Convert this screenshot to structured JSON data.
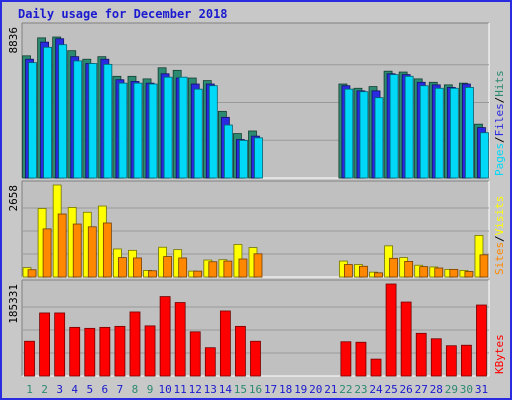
{
  "chart_data": {
    "type": "bar",
    "title": "Daily usage for December 2018",
    "days": [
      "1",
      "2",
      "3",
      "4",
      "5",
      "6",
      "7",
      "8",
      "9",
      "10",
      "11",
      "12",
      "13",
      "14",
      "15",
      "16",
      "17",
      "18",
      "19",
      "20",
      "21",
      "22",
      "23",
      "24",
      "25",
      "26",
      "27",
      "28",
      "29",
      "30",
      "31"
    ],
    "weekend_days": [
      "1",
      "2",
      "8",
      "9",
      "15",
      "16",
      "22",
      "23",
      "29",
      "30"
    ],
    "panels": [
      {
        "id": "top",
        "max_label": "8836",
        "ymax": 8836,
        "right_labels": [
          "Hits",
          "Files",
          "Pages"
        ],
        "series": [
          {
            "name": "Hits",
            "color": "#2c8a70",
            "values": [
              7150,
              8200,
              8250,
              7450,
              6950,
              7100,
              5950,
              5950,
              5800,
              6450,
              6300,
              5850,
              5700,
              3900,
              2600,
              2750,
              0,
              0,
              0,
              0,
              0,
              5500,
              5250,
              5350,
              6250,
              6200,
              5800,
              5600,
              5450,
              5550,
              3150
            ]
          },
          {
            "name": "Files",
            "color": "#2a2ae0",
            "values": [
              6950,
              7950,
              8150,
              7100,
              6700,
              6950,
              5750,
              5650,
              5550,
              6100,
              5850,
              5500,
              5500,
              3550,
              2250,
              2450,
              0,
              0,
              0,
              0,
              0,
              5400,
              5100,
              5100,
              6100,
              6050,
              5600,
              5450,
              5300,
              5500,
              2950
            ]
          },
          {
            "name": "Pages",
            "color": "#00d8f8",
            "values": [
              6750,
              7650,
              7800,
              6850,
              6700,
              6650,
              5550,
              5550,
              5500,
              5900,
              5900,
              5200,
              5400,
              3100,
              2200,
              2350,
              0,
              0,
              0,
              0,
              0,
              5200,
              5050,
              4700,
              6050,
              5950,
              5400,
              5250,
              5250,
              5300,
              2650
            ]
          }
        ]
      },
      {
        "id": "mid",
        "max_label": "2658",
        "ymax": 2658,
        "right_labels": [
          "Visits",
          "Sites"
        ],
        "series": [
          {
            "name": "Visits",
            "color": "#ffff00",
            "values": [
              270,
              1980,
              2658,
              2010,
              1870,
              2050,
              810,
              770,
              190,
              860,
              790,
              170,
              490,
              500,
              940,
              850,
              0,
              0,
              0,
              0,
              0,
              460,
              360,
              140,
              900,
              560,
              340,
              290,
              220,
              190,
              1200
            ]
          },
          {
            "name": "Sites",
            "color": "#ff8800",
            "values": [
              210,
              1390,
              1820,
              1530,
              1450,
              1560,
              560,
              550,
              180,
              590,
              550,
              170,
              440,
              460,
              520,
              670,
              0,
              0,
              0,
              0,
              0,
              360,
              310,
              120,
              540,
              450,
              300,
              260,
              220,
              160,
              640
            ]
          }
        ]
      },
      {
        "id": "bot",
        "max_label": "185331",
        "ymax": 185331,
        "right_labels": [
          "KBytes"
        ],
        "series": [
          {
            "name": "KBytes",
            "color": "#ff0000",
            "values": [
              70000,
              127000,
              127000,
              98000,
              96000,
              98000,
              100000,
              129000,
              101000,
              160000,
              148000,
              89000,
              57000,
              131000,
              100000,
              70000,
              0,
              0,
              0,
              0,
              0,
              69000,
              68000,
              34000,
              185331,
              149000,
              86000,
              75000,
              61000,
              62000,
              143000
            ]
          }
        ]
      }
    ]
  },
  "colors": {
    "border": "#2a2ae0",
    "plot_bg": "#c0c0c0",
    "frame_bg": "#c8c8c8",
    "weekday_label": "#1a1ad0",
    "weekend_label": "#2c8a70"
  }
}
